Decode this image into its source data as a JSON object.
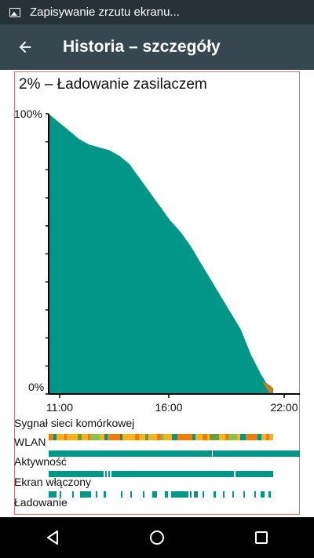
{
  "status_bar": {
    "notification_text": "Zapisywanie zrzutu ekranu...",
    "notification_icon": "image-icon"
  },
  "app_bar": {
    "title": "Historia – szczegóły",
    "back_icon": "arrow-back-icon"
  },
  "battery": {
    "title": "2% – Ładowanie zasilaczem"
  },
  "chart_data": {
    "type": "area",
    "y_axis_top_label": "100%",
    "y_axis_bottom_label": "0%",
    "x_tick_labels": [
      "11:00",
      "16:00",
      "22:00"
    ],
    "ylim": [
      0,
      100
    ],
    "fill_color": "#009688",
    "series": [
      {
        "values": [
          [
            0,
            100
          ],
          [
            0.5,
            97
          ],
          [
            1,
            94
          ],
          [
            1.5,
            91
          ],
          [
            2,
            89
          ],
          [
            2.5,
            88
          ],
          [
            3,
            87
          ],
          [
            3.5,
            85
          ],
          [
            4,
            82
          ],
          [
            4.5,
            77
          ],
          [
            5,
            72
          ],
          [
            5.5,
            67
          ],
          [
            6,
            62
          ],
          [
            6.5,
            58
          ],
          [
            7,
            53
          ],
          [
            7.5,
            47
          ],
          [
            8,
            41
          ],
          [
            8.5,
            35
          ],
          [
            9,
            29
          ],
          [
            9.5,
            23
          ],
          [
            10,
            14
          ],
          [
            10.5,
            7
          ],
          [
            10.75,
            4
          ],
          [
            11.1,
            2
          ]
        ]
      }
    ]
  },
  "tracks": {
    "signal_label": "Sygnał sieci komórkowej",
    "wlan_label": "WLAN",
    "activity_label": "Aktywność",
    "screen_label": "Ekran włączony",
    "charging_label": "Ładowanie",
    "colors": {
      "green": "#009688",
      "yellow": "#f9b219",
      "orange": "#f57c00",
      "lime": "#8bc34a",
      "olive": "#689f38"
    }
  },
  "nav_bar": {
    "back_icon": "nav-back-icon",
    "home_icon": "nav-home-icon",
    "recents_icon": "nav-recents-icon"
  }
}
